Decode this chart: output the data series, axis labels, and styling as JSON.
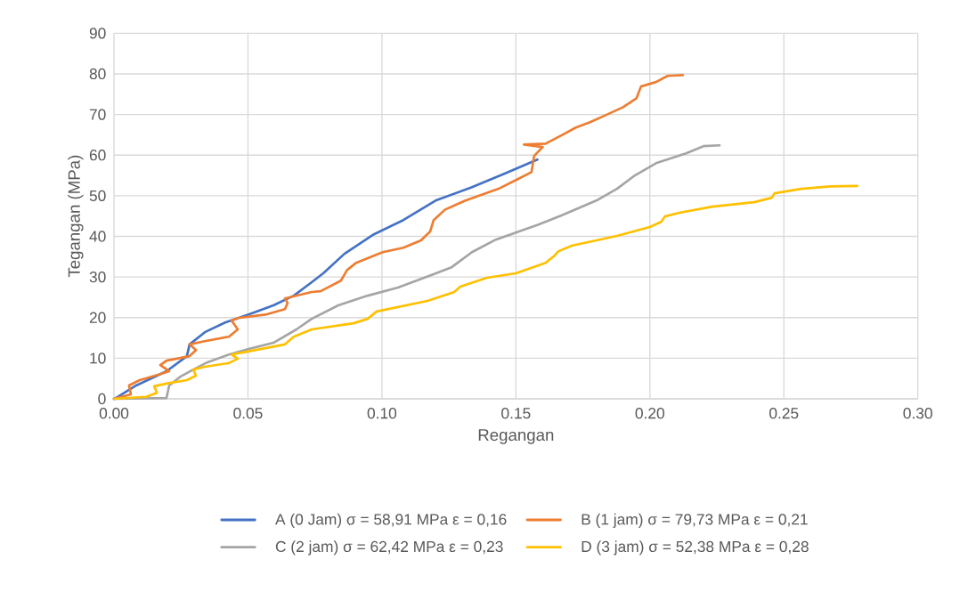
{
  "chart_data": {
    "type": "line",
    "xlabel": "Regangan",
    "ylabel": "Tegangan (MPa)",
    "xlim": [
      0,
      0.3
    ],
    "ylim": [
      0,
      90
    ],
    "xticks": [
      {
        "value": 0,
        "label": "0.00"
      },
      {
        "value": 0.05,
        "label": "0.05"
      },
      {
        "value": 0.1,
        "label": "0.10"
      },
      {
        "value": 0.15,
        "label": "0.15"
      },
      {
        "value": 0.2,
        "label": "0.20"
      },
      {
        "value": 0.25,
        "label": "0.25"
      },
      {
        "value": 0.3,
        "label": "0.30"
      }
    ],
    "yticks": [
      0,
      10,
      20,
      30,
      40,
      50,
      60,
      70,
      80,
      90
    ],
    "grid": true,
    "legend": "bottom",
    "marker": "none",
    "line_style": "solid",
    "series": [
      {
        "name": "A (0 Jam) σ = 58,91 MPa ε = 0,16",
        "color": "#4472c4",
        "x": [
          0,
          0.0007,
          0.0083,
          0.0196,
          0.0272,
          0.0282,
          0.0339,
          0.0415,
          0.0505,
          0.0595,
          0.0671,
          0.0738,
          0.0781,
          0.086,
          0.097,
          0.108,
          0.12,
          0.1336,
          0.146,
          0.158
        ],
        "values": [
          0,
          0.2,
          3.3,
          6.8,
          10.5,
          13.4,
          16.4,
          18.8,
          20.8,
          23.0,
          25.4,
          28.7,
          30.9,
          35.7,
          40.5,
          44.0,
          48.8,
          52.1,
          55.5,
          58.9
        ]
      },
      {
        "name": "B (1 jam) σ = 79,73 MPa ε = 0,21",
        "color": "#ed7d31",
        "x": [
          0,
          0.0063,
          0.0056,
          0.0096,
          0.0173,
          0.0206,
          0.0173,
          0.0196,
          0.0282,
          0.0306,
          0.0282,
          0.0339,
          0.0429,
          0.0462,
          0.0439,
          0.0462,
          0.0571,
          0.0638,
          0.0648,
          0.0638,
          0.0738,
          0.0771,
          0.0847,
          0.087,
          0.0904,
          0.1003,
          0.108,
          0.1146,
          0.118,
          0.1193,
          0.1236,
          0.1312,
          0.1435,
          0.1502,
          0.1558,
          0.1568,
          0.16,
          0.153,
          0.161,
          0.1625,
          0.1668,
          0.1724,
          0.1777,
          0.1844,
          0.19,
          0.195,
          0.1967,
          0.2023,
          0.2066,
          0.2123
        ],
        "values": [
          0,
          1.1,
          3.3,
          4.6,
          6.1,
          6.8,
          8.3,
          9.4,
          10.5,
          12.0,
          13.4,
          14.2,
          15.3,
          17.1,
          19.3,
          19.9,
          20.8,
          22.1,
          23.6,
          24.7,
          26.3,
          26.5,
          29.1,
          31.7,
          33.5,
          36.1,
          37.2,
          39.0,
          41.2,
          44.0,
          46.6,
          48.8,
          51.7,
          53.9,
          55.8,
          59.8,
          62.0,
          62.6,
          62.8,
          63.3,
          64.8,
          66.8,
          68.1,
          70.1,
          71.8,
          74.0,
          76.9,
          78.0,
          79.5,
          79.7
        ]
      },
      {
        "name": "C (2 jam) σ = 62,42 MPa ε = 0,23",
        "color": "#a5a5a5",
        "x": [
          0,
          0.0196,
          0.0206,
          0.0249,
          0.0296,
          0.0349,
          0.0429,
          0.0505,
          0.0595,
          0.0681,
          0.0738,
          0.0837,
          0.0947,
          0.106,
          0.1193,
          0.126,
          0.1336,
          0.1425,
          0.158,
          0.1668,
          0.18,
          0.1877,
          0.1944,
          0.2023,
          0.2133,
          0.22,
          0.226
        ],
        "values": [
          0,
          0.2,
          3.3,
          5.5,
          7.2,
          9.0,
          10.9,
          12.3,
          13.8,
          17.1,
          19.7,
          23.0,
          25.4,
          27.4,
          30.7,
          32.4,
          36.1,
          39.2,
          42.8,
          45.1,
          48.8,
          51.7,
          55.0,
          58.0,
          60.4,
          62.2,
          62.4
        ]
      },
      {
        "name": "D (3 jam) σ = 52,38 MPa ε = 0,28",
        "color": "#ffc000",
        "x": [
          0,
          0.012,
          0.016,
          0.015,
          0.02,
          0.0272,
          0.0306,
          0.0296,
          0.0339,
          0.0429,
          0.0462,
          0.0439,
          0.0495,
          0.0638,
          0.0671,
          0.0738,
          0.0894,
          0.0947,
          0.098,
          0.117,
          0.127,
          0.1292,
          0.1392,
          0.15,
          0.1611,
          0.1645,
          0.1658,
          0.1708,
          0.1877,
          0.2,
          0.2043,
          0.2056,
          0.211,
          0.2233,
          0.2389,
          0.2455,
          0.2465,
          0.2565,
          0.2674,
          0.2774
        ],
        "values": [
          0,
          0.5,
          1.5,
          3.1,
          3.8,
          4.6,
          5.7,
          7.2,
          7.9,
          8.8,
          9.9,
          10.9,
          11.6,
          13.4,
          15.3,
          17.1,
          18.6,
          19.7,
          21.5,
          24.1,
          26.3,
          27.6,
          29.8,
          30.9,
          33.5,
          35.3,
          36.3,
          37.7,
          40.1,
          42.3,
          43.6,
          44.9,
          45.8,
          47.3,
          48.4,
          49.5,
          50.6,
          51.7,
          52.3,
          52.4
        ]
      }
    ]
  }
}
